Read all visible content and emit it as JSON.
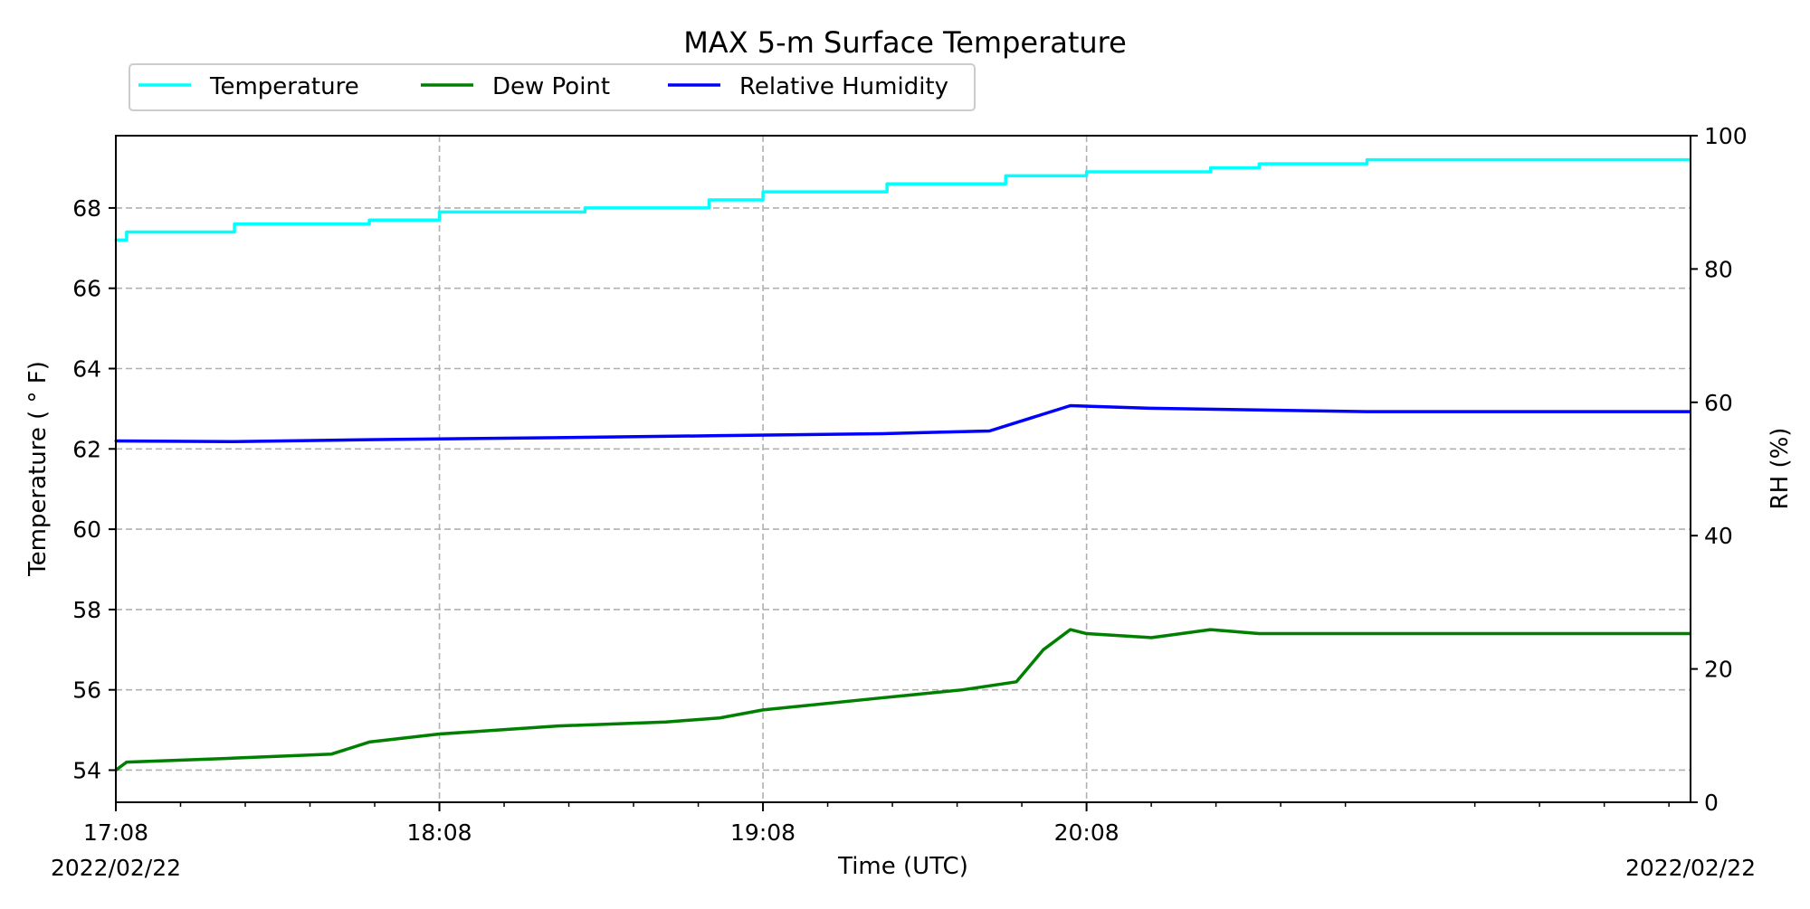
{
  "chart_data": {
    "type": "line",
    "title": "MAX 5-m Surface Temperature",
    "xlabel": "Time (UTC)",
    "ylabel": "Temperature ( ° F)",
    "ylabel_right": "RH (%)",
    "x_start_label": "2022/02/22",
    "x_end_label": "2022/02/22",
    "xlim": [
      "17:08",
      "22:00"
    ],
    "ylim_left": [
      53.2,
      69.8
    ],
    "ylim_right": [
      0,
      100
    ],
    "xticks": [
      "17:08",
      "18:08",
      "19:08",
      "20:08"
    ],
    "yticks_left": [
      54,
      56,
      58,
      60,
      62,
      64,
      66,
      68
    ],
    "yticks_right": [
      0,
      20,
      40,
      60,
      80,
      100
    ],
    "grid": true,
    "legend_position": "top-left",
    "series": [
      {
        "name": "Temperature",
        "axis": "left",
        "color": "#00ffff",
        "x": [
          "17:08",
          "17:10",
          "17:30",
          "17:55",
          "18:08",
          "18:35",
          "18:58",
          "19:08",
          "19:31",
          "19:53",
          "20:08",
          "20:31",
          "20:40",
          "21:00"
        ],
        "y": [
          67.2,
          67.4,
          67.6,
          67.7,
          67.9,
          68.0,
          68.2,
          68.4,
          68.6,
          68.8,
          68.9,
          69.0,
          69.1,
          69.2
        ]
      },
      {
        "name": "Dew Point",
        "axis": "left",
        "color": "#008000",
        "x": [
          "17:08",
          "17:10",
          "17:30",
          "17:48",
          "17:55",
          "18:08",
          "18:30",
          "18:50",
          "19:00",
          "19:08",
          "19:30",
          "19:45",
          "19:55",
          "20:00",
          "20:05",
          "20:08",
          "20:20",
          "20:31",
          "20:40",
          "21:00"
        ],
        "y": [
          54.0,
          54.2,
          54.3,
          54.4,
          54.7,
          54.9,
          55.1,
          55.2,
          55.3,
          55.5,
          55.8,
          56.0,
          56.2,
          57.0,
          57.5,
          57.4,
          57.3,
          57.5,
          57.4,
          57.4
        ]
      },
      {
        "name": "Relative Humidity",
        "axis": "right",
        "color": "#0000ff",
        "x": [
          "17:08",
          "17:30",
          "17:55",
          "18:30",
          "19:00",
          "19:30",
          "19:50",
          "20:05",
          "20:20",
          "21:00"
        ],
        "y": [
          54.2,
          54.1,
          54.4,
          54.7,
          55.0,
          55.3,
          55.7,
          59.5,
          59.1,
          58.6
        ]
      }
    ]
  }
}
